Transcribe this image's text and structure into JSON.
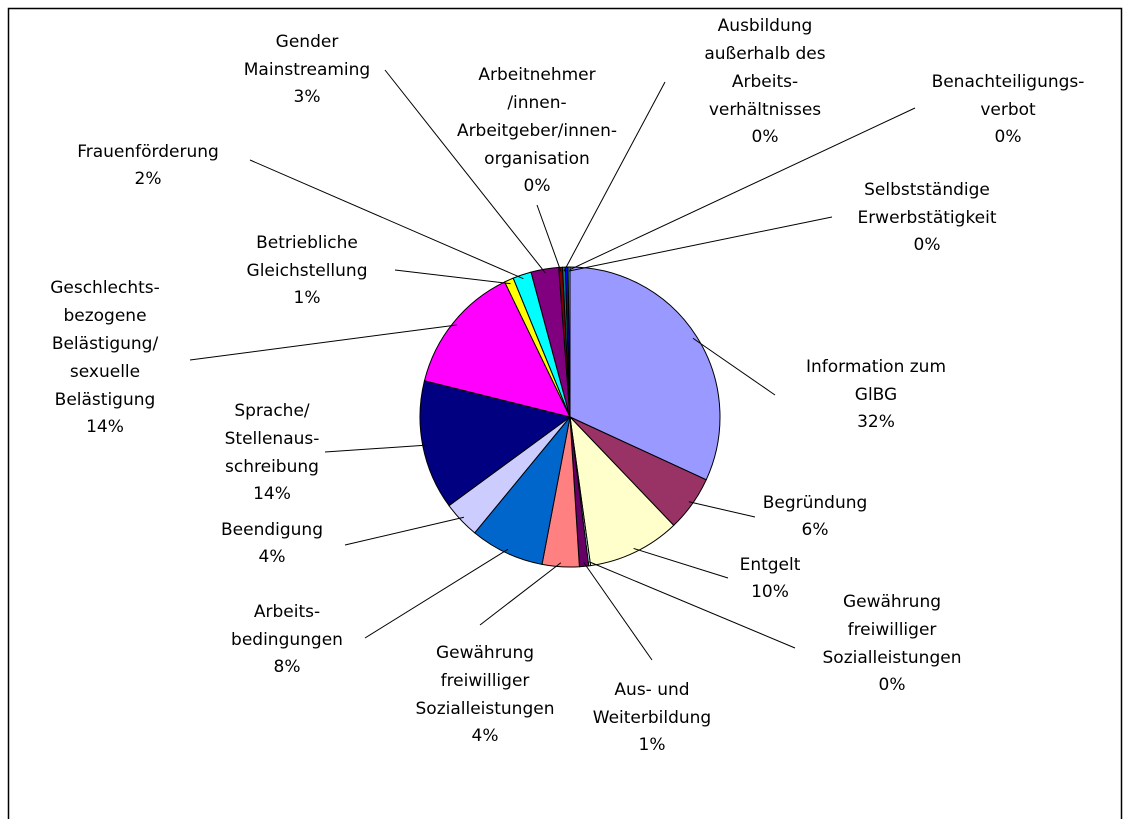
{
  "chart_data": {
    "type": "pie",
    "categories": [
      "Information zum\nGlBG",
      "Begründung",
      "Entgelt",
      "Gewährung\nfreiwilliger\nSozialleistungen",
      "Aus- und\nWeiterbildung",
      "Gewährung\nfreiwilliger\nSozialleistungen",
      "Arbeits-\nbedingungen",
      "Beendigung",
      "Sprache/\nStellenaus-\nschreibung",
      "Geschlechts-\nbezogene\nBelästigung/\nsexuelle\nBelästigung",
      "Betriebliche\nGleichstellung",
      "Frauenförderung",
      "Gender\nMainstreaming",
      "Arbeitnehmer\n/innen-\nArbeitgeber/innen-\norganisation",
      "Ausbildung\naußerhalb des\nArbeits-\nverhältnisses",
      "Benachteiligungs-\nverbot",
      "Selbstständige\nErwerbstätigkeit"
    ],
    "values": [
      32,
      6,
      10,
      0.2,
      1,
      4,
      8,
      4,
      14,
      14,
      1,
      2,
      3,
      0.4,
      0.3,
      0.3,
      0.2
    ],
    "value_labels": [
      "32%",
      "6%",
      "10%",
      "0%",
      "1%",
      "4%",
      "8%",
      "4%",
      "14%",
      "14%",
      "1%",
      "2%",
      "3%",
      "0%",
      "0%",
      "0%",
      "0%"
    ],
    "colors": [
      "#9999ff",
      "#993366",
      "#ffffcc",
      "#ccffff",
      "#660066",
      "#ff8080",
      "#0066cc",
      "#ccccff",
      "#000080",
      "#ff00ff",
      "#ffff00",
      "#00ffff",
      "#800080",
      "#800000",
      "#008080",
      "#0000ff",
      "#33cccc"
    ]
  }
}
